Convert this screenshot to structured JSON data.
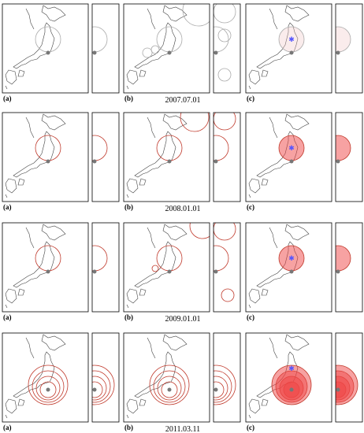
{
  "rows": [
    {
      "date": "2007.07.01",
      "panels": [
        "(a)",
        "(b)",
        "(c)"
      ]
    },
    {
      "date": "2008.01.01",
      "panels": [
        "(a)",
        "(b)",
        "(c)"
      ]
    },
    {
      "date": "2009.01.01",
      "panels": [
        "(a)",
        "(b)",
        "(c)"
      ]
    },
    {
      "date": "2011.03.11",
      "panels": [
        "(a)",
        "(b)",
        "(c)"
      ]
    }
  ]
}
